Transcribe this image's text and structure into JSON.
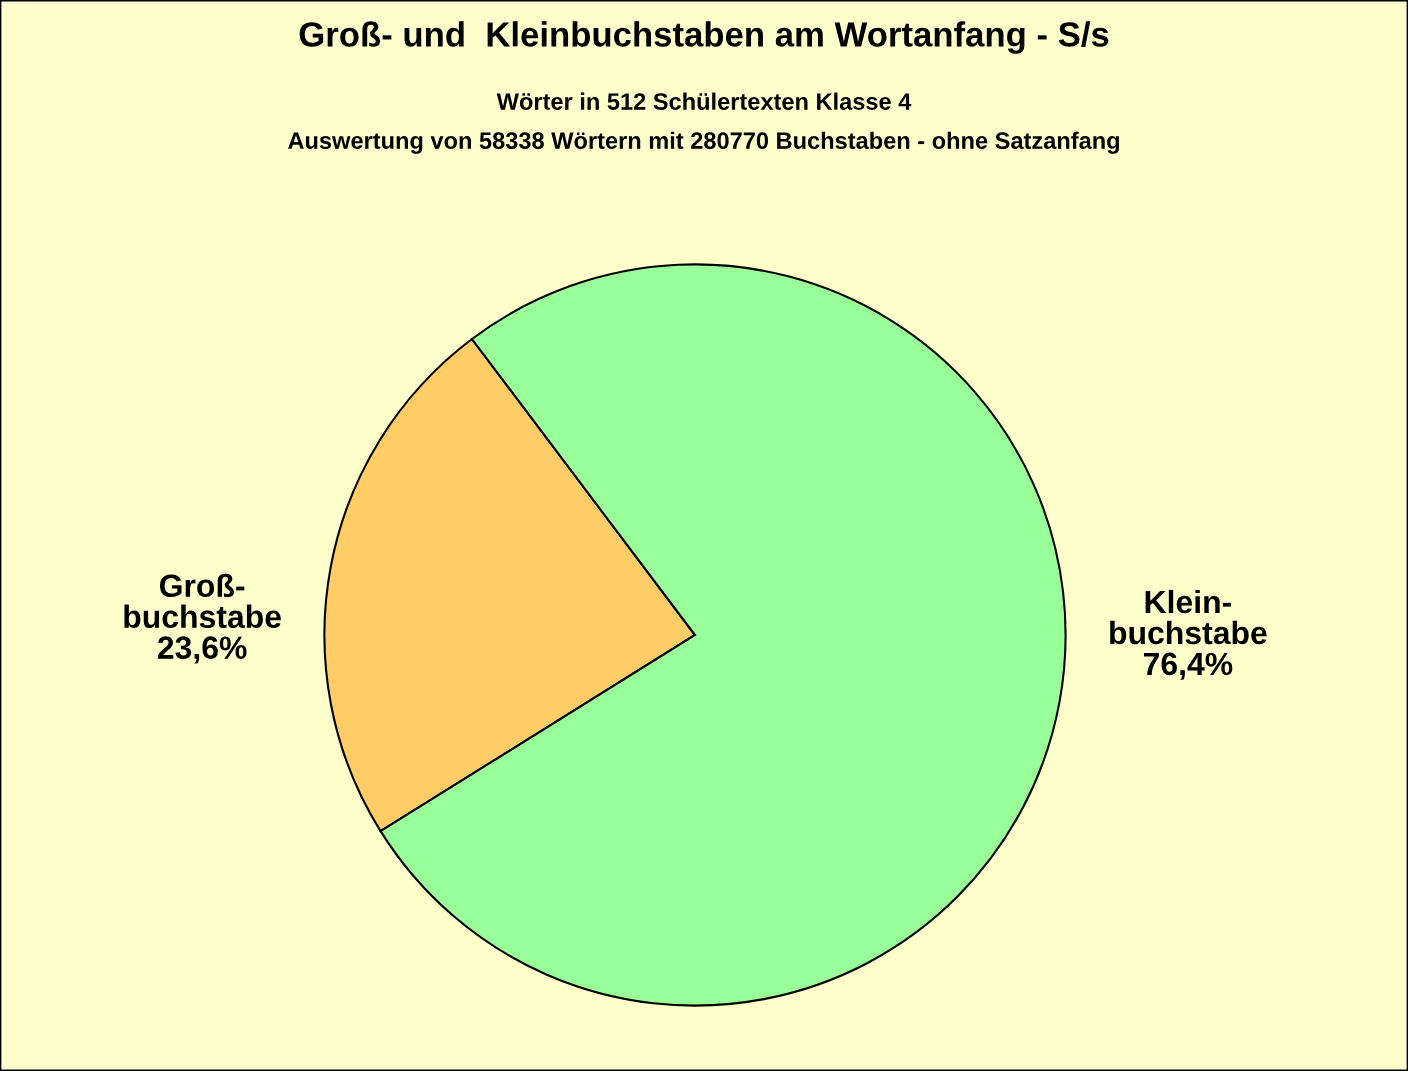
{
  "chart_data": {
    "type": "pie",
    "title": "Groß- und  Kleinbuchstaben am Wortanfang - S/s",
    "subtitle": "Wörter in 512 Schülertexten Klasse 4\nAuswertung von 58338 Wörtern mit 280770 Buchstaben - ohne Satzanfang",
    "categories": [
      "Groß-\nbuchstabe",
      "Klein-\nbuchstabe"
    ],
    "values": [
      23.6,
      76.4
    ],
    "value_labels": [
      "23,6%",
      "76,4%"
    ],
    "colors": [
      "#ffcc66",
      "#99ff99"
    ]
  }
}
